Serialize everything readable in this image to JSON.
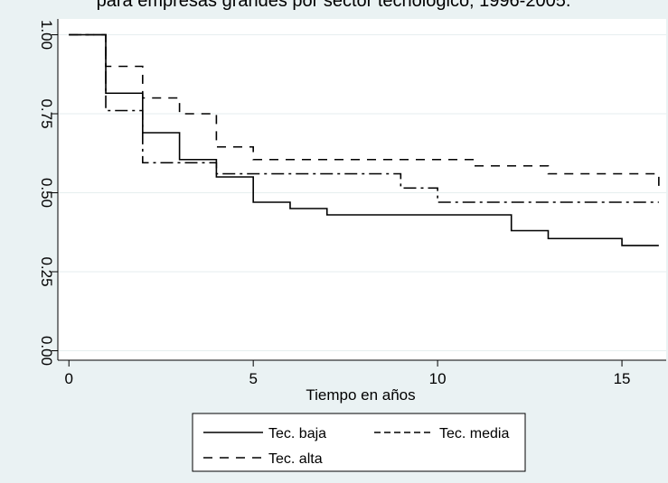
{
  "chart_data": {
    "type": "line",
    "title": "para empresas grandes por sector tecnológico, 1996-2005.",
    "xlabel": "Tiempo en años",
    "ylabel": "",
    "xlim": [
      -0.3,
      16.2
    ],
    "ylim": [
      -0.03,
      1.05
    ],
    "xticks": [
      "0",
      "5",
      "10",
      "15"
    ],
    "yticks": [
      "0.00",
      "0.25",
      "0.50",
      "0.75",
      "1.00"
    ],
    "grid": true,
    "legend_position": "bottom",
    "series": [
      {
        "name": "Tec. baja",
        "style": "solid",
        "x": [
          0,
          1,
          2,
          3,
          4,
          5,
          6,
          7,
          12,
          13,
          15,
          16
        ],
        "y": [
          1.0,
          0.815,
          0.69,
          0.605,
          0.55,
          0.47,
          0.45,
          0.43,
          0.38,
          0.355,
          0.333,
          0.333
        ]
      },
      {
        "name": "Tec. media",
        "style": "dashdot",
        "x": [
          0,
          1,
          2,
          4,
          9,
          10,
          16
        ],
        "y": [
          1.0,
          0.76,
          0.595,
          0.56,
          0.515,
          0.47,
          0.47
        ]
      },
      {
        "name": "Tec. alta",
        "style": "dashed",
        "x": [
          0,
          1,
          2,
          3,
          4,
          5,
          11,
          13,
          16
        ],
        "y": [
          1.0,
          0.9,
          0.8,
          0.75,
          0.645,
          0.605,
          0.585,
          0.56,
          0.5
        ]
      }
    ]
  }
}
